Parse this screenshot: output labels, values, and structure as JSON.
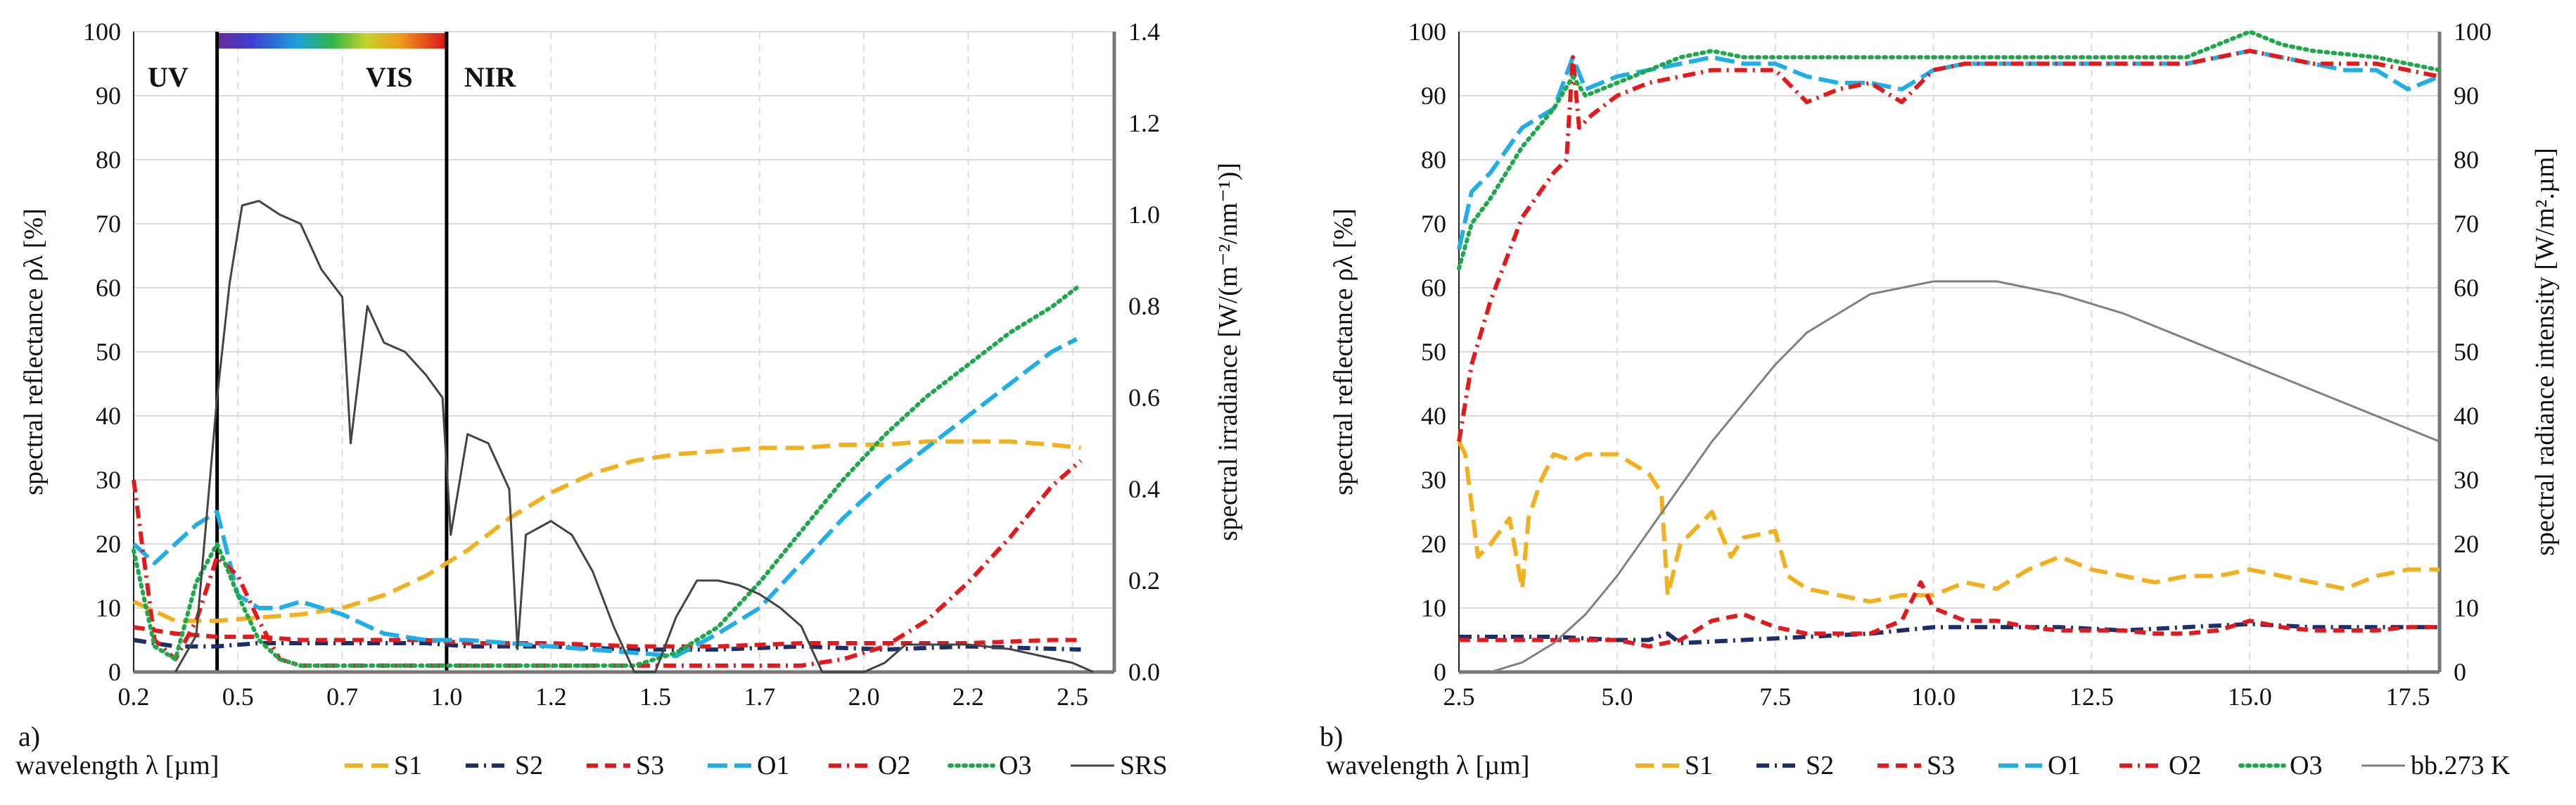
{
  "chart_data": [
    {
      "type": "line",
      "panel_label": "a)",
      "title": "",
      "xlabel": "wavelength λ  [µm]",
      "ylabel": "spectral reflectance ρλ  [%]",
      "y2label": "spectral irradiance [W/(m⁻²/nm⁻¹)]",
      "xlim": [
        0.2,
        2.55
      ],
      "ylim": [
        0,
        100
      ],
      "y2lim": [
        0,
        1.4
      ],
      "xticks": [
        "0.2",
        "0.5",
        "0.7",
        "1.0",
        "1.2",
        "1.5",
        "1.7",
        "2.0",
        "2.2",
        "2.5"
      ],
      "xtick_values": [
        0.2,
        0.45,
        0.7,
        0.95,
        1.2,
        1.45,
        1.7,
        1.95,
        2.2,
        2.45
      ],
      "yticks": [
        "0",
        "10",
        "20",
        "30",
        "40",
        "50",
        "60",
        "70",
        "80",
        "90",
        "100"
      ],
      "y2ticks": [
        "0.0",
        "0.2",
        "0.4",
        "0.6",
        "0.8",
        "1.0",
        "1.2",
        "1.4"
      ],
      "regions": [
        {
          "label": "UV",
          "x_start": 0.2,
          "x_end": 0.4
        },
        {
          "label": "VIS",
          "x_start": 0.4,
          "x_end": 0.95
        },
        {
          "label": "NIR",
          "x_start": 0.95,
          "x_end": 2.55
        }
      ],
      "series": [
        {
          "name": "S1",
          "color": "#F2B01E",
          "dash": "long",
          "axis": "left",
          "x": [
            0.2,
            0.3,
            0.4,
            0.5,
            0.6,
            0.7,
            0.8,
            0.9,
            1.0,
            1.1,
            1.2,
            1.3,
            1.4,
            1.5,
            1.6,
            1.7,
            1.8,
            1.9,
            2.0,
            2.1,
            2.2,
            2.3,
            2.4,
            2.47
          ],
          "y": [
            11,
            8,
            8,
            8.5,
            9,
            10,
            12,
            15,
            19,
            24,
            28,
            31,
            33,
            34,
            34.5,
            35,
            35,
            35.5,
            35.5,
            36,
            36,
            36,
            35.5,
            35
          ]
        },
        {
          "name": "S2",
          "color": "#1B2F6B",
          "dash": "dashdot",
          "axis": "left",
          "x": [
            0.2,
            0.3,
            0.4,
            0.5,
            0.6,
            0.7,
            0.8,
            0.9,
            1.0,
            1.2,
            1.4,
            1.6,
            1.8,
            2.0,
            2.2,
            2.47
          ],
          "y": [
            5,
            4,
            4,
            4.5,
            4.5,
            4.5,
            4.5,
            4.5,
            4,
            4,
            3.5,
            3.5,
            4,
            3.5,
            4,
            3.5
          ]
        },
        {
          "name": "S3",
          "color": "#E31A1C",
          "dash": "dash",
          "axis": "left",
          "x": [
            0.2,
            0.3,
            0.4,
            0.5,
            0.6,
            0.7,
            0.8,
            0.9,
            1.0,
            1.2,
            1.4,
            1.6,
            1.8,
            2.0,
            2.2,
            2.4,
            2.47
          ],
          "y": [
            7,
            6,
            5.5,
            5.5,
            5,
            5,
            5,
            5,
            4.5,
            4.5,
            4,
            4,
            4.5,
            4.5,
            4.5,
            5,
            5
          ]
        },
        {
          "name": "O1",
          "color": "#1FAEE5",
          "dash": "longdash",
          "axis": "left",
          "x": [
            0.2,
            0.25,
            0.3,
            0.35,
            0.4,
            0.45,
            0.5,
            0.55,
            0.6,
            0.7,
            0.8,
            0.9,
            1.0,
            1.1,
            1.2,
            1.3,
            1.4,
            1.5,
            1.6,
            1.7,
            1.8,
            1.9,
            2.0,
            2.1,
            2.2,
            2.3,
            2.4,
            2.46
          ],
          "y": [
            20,
            17,
            20,
            23,
            25,
            12,
            10,
            10,
            11,
            9,
            6,
            5,
            5,
            4.5,
            4,
            3.5,
            3,
            2.5,
            6,
            10,
            17,
            24,
            30,
            35,
            40,
            45,
            50,
            52
          ]
        },
        {
          "name": "O2",
          "color": "#E31A1C",
          "dash": "dashdot",
          "axis": "left",
          "x": [
            0.2,
            0.22,
            0.25,
            0.3,
            0.35,
            0.4,
            0.45,
            0.5,
            0.55,
            0.6,
            0.7,
            0.8,
            0.9,
            1.0,
            1.2,
            1.4,
            1.6,
            1.8,
            1.9,
            2.0,
            2.1,
            2.2,
            2.3,
            2.4,
            2.47
          ],
          "y": [
            30,
            20,
            5,
            2,
            8,
            18,
            15,
            8,
            2,
            1,
            1,
            1,
            1,
            1,
            1,
            1,
            1,
            1,
            2,
            4,
            8,
            14,
            21,
            29,
            33
          ]
        },
        {
          "name": "O3",
          "color": "#1EA84A",
          "dash": "dot",
          "axis": "left",
          "x": [
            0.2,
            0.25,
            0.3,
            0.35,
            0.4,
            0.45,
            0.5,
            0.55,
            0.6,
            0.7,
            0.8,
            0.9,
            1.0,
            1.1,
            1.2,
            1.3,
            1.4,
            1.5,
            1.6,
            1.7,
            1.8,
            1.9,
            2.0,
            2.1,
            2.2,
            2.3,
            2.4,
            2.46
          ],
          "y": [
            19,
            4,
            2,
            14,
            20,
            12,
            5,
            2,
            1,
            1,
            1,
            1,
            1,
            1,
            1,
            1,
            1,
            3,
            7,
            14,
            22,
            30,
            37,
            43,
            48,
            53,
            57,
            60
          ]
        },
        {
          "name": "SRS",
          "color": "#444444",
          "dash": "solid",
          "axis": "right",
          "x": [
            0.3,
            0.35,
            0.4,
            0.43,
            0.46,
            0.5,
            0.55,
            0.6,
            0.65,
            0.7,
            0.72,
            0.76,
            0.8,
            0.85,
            0.9,
            0.94,
            0.96,
            1.0,
            1.05,
            1.1,
            1.12,
            1.14,
            1.2,
            1.25,
            1.3,
            1.35,
            1.4,
            1.45,
            1.5,
            1.55,
            1.6,
            1.65,
            1.7,
            1.75,
            1.8,
            1.85,
            1.95,
            2.0,
            2.05,
            2.1,
            2.2,
            2.3,
            2.4,
            2.45,
            2.5
          ],
          "y": [
            0.0,
            0.08,
            0.6,
            0.85,
            1.02,
            1.03,
            1.0,
            0.98,
            0.88,
            0.82,
            0.5,
            0.8,
            0.72,
            0.7,
            0.65,
            0.6,
            0.3,
            0.52,
            0.5,
            0.4,
            0.05,
            0.3,
            0.33,
            0.3,
            0.22,
            0.1,
            0.0,
            0.0,
            0.12,
            0.2,
            0.2,
            0.19,
            0.17,
            0.14,
            0.1,
            0.0,
            0.0,
            0.02,
            0.06,
            0.06,
            0.06,
            0.05,
            0.03,
            0.02,
            0.0
          ]
        }
      ],
      "legend_position": "bottom"
    },
    {
      "type": "line",
      "panel_label": "b)",
      "title": "",
      "xlabel": "wavelength λ  [µm]",
      "ylabel": "spectral reflectance ρλ  [%]",
      "y2label": "spectral radiance intensity [W/m².µm]",
      "xlim": [
        2.5,
        18
      ],
      "ylim": [
        0,
        100
      ],
      "y2lim": [
        0,
        100
      ],
      "xticks": [
        "2.5",
        "5.0",
        "7.5",
        "10.0",
        "12.5",
        "15.0",
        "17.5"
      ],
      "xtick_values": [
        2.5,
        5.0,
        7.5,
        10.0,
        12.5,
        15.0,
        17.5
      ],
      "yticks": [
        "0",
        "10",
        "20",
        "30",
        "40",
        "50",
        "60",
        "70",
        "80",
        "90",
        "100"
      ],
      "y2ticks": [
        "0",
        "10",
        "20",
        "30",
        "40",
        "50",
        "60",
        "70",
        "80",
        "90",
        "100"
      ],
      "series": [
        {
          "name": "S1",
          "color": "#F2B01E",
          "dash": "long",
          "axis": "left",
          "x": [
            2.5,
            2.6,
            2.8,
            3.0,
            3.3,
            3.5,
            3.6,
            3.8,
            4.0,
            4.3,
            4.5,
            5.0,
            5.5,
            5.7,
            5.8,
            6.0,
            6.5,
            6.8,
            7.0,
            7.5,
            7.7,
            8.0,
            8.5,
            9.0,
            9.5,
            10.0,
            10.5,
            11.0,
            11.5,
            12.0,
            12.5,
            13.0,
            13.5,
            14.0,
            14.5,
            15.0,
            15.5,
            16.0,
            16.5,
            17.0,
            17.5,
            18.0
          ],
          "y": [
            36,
            34,
            18,
            20,
            24,
            13,
            24,
            30,
            34,
            33,
            34,
            34,
            31,
            28,
            12,
            20,
            25,
            18,
            21,
            22,
            15,
            13,
            12,
            11,
            12,
            12,
            14,
            13,
            16,
            18,
            16,
            15,
            14,
            15,
            15,
            16,
            15,
            14,
            13,
            15,
            16,
            16
          ]
        },
        {
          "name": "S2",
          "color": "#1B2F6B",
          "dash": "dashdot",
          "axis": "left",
          "x": [
            2.5,
            3.0,
            4.0,
            5.0,
            5.5,
            5.8,
            6.0,
            7.0,
            8.0,
            9.0,
            10.0,
            11.0,
            12.0,
            13.0,
            14.0,
            15.0,
            16.0,
            17.0,
            18.0
          ],
          "y": [
            5.5,
            5.5,
            5.5,
            5,
            5,
            6,
            4.5,
            5,
            5.5,
            6,
            7,
            7,
            7,
            6.5,
            7,
            7.5,
            7,
            7,
            7
          ]
        },
        {
          "name": "S3",
          "color": "#E31A1C",
          "dash": "dash",
          "axis": "left",
          "x": [
            2.5,
            3.0,
            4.0,
            5.0,
            5.5,
            6.0,
            6.5,
            7.0,
            7.5,
            8.0,
            8.5,
            9.0,
            9.5,
            9.8,
            10.0,
            10.5,
            11.0,
            11.5,
            12.0,
            12.5,
            13.0,
            13.5,
            14.0,
            14.5,
            15.0,
            15.5,
            16.0,
            16.5,
            17.0,
            17.5,
            18.0
          ],
          "y": [
            5,
            5,
            5,
            5,
            4,
            5,
            8,
            9,
            7,
            6,
            6,
            6,
            8,
            14,
            10,
            8,
            8,
            7,
            6.5,
            6.5,
            6.5,
            6,
            6,
            6.5,
            8,
            7,
            6.5,
            6.5,
            6.5,
            7,
            7
          ]
        },
        {
          "name": "O1",
          "color": "#1FAEE5",
          "dash": "longdash",
          "axis": "left",
          "x": [
            2.5,
            2.7,
            3.0,
            3.5,
            4.0,
            4.3,
            4.5,
            5.0,
            5.5,
            6.0,
            6.5,
            7.0,
            7.5,
            8.0,
            8.5,
            9.0,
            9.5,
            10.0,
            10.5,
            11.0,
            11.5,
            12.0,
            12.5,
            13.0,
            13.5,
            14.0,
            14.5,
            15.0,
            15.5,
            16.0,
            16.5,
            17.0,
            17.5,
            18.0
          ],
          "y": [
            66,
            75,
            78,
            85,
            88,
            96,
            91,
            93,
            94,
            95,
            96,
            95,
            95,
            93,
            92,
            92,
            91,
            94,
            95,
            95,
            95,
            95,
            95,
            95,
            95,
            95,
            96,
            97,
            96,
            95,
            94,
            94,
            91,
            93
          ]
        },
        {
          "name": "O2",
          "color": "#E31A1C",
          "dash": "dashdot",
          "axis": "left",
          "x": [
            2.5,
            2.7,
            3.0,
            3.5,
            4.0,
            4.2,
            4.3,
            4.4,
            4.6,
            5.0,
            5.5,
            6.0,
            6.5,
            7.0,
            7.5,
            8.0,
            8.5,
            9.0,
            9.5,
            10.0,
            10.5,
            11.0,
            11.5,
            12.0,
            12.5,
            13.0,
            13.5,
            14.0,
            14.5,
            15.0,
            15.5,
            16.0,
            16.5,
            17.0,
            17.5,
            18.0
          ],
          "y": [
            36,
            48,
            58,
            71,
            78,
            80,
            96,
            85,
            87,
            90,
            92,
            93,
            94,
            94,
            94,
            89,
            91,
            92,
            89,
            94,
            95,
            95,
            95,
            95,
            95,
            95,
            95,
            95,
            96,
            97,
            96,
            95,
            95,
            95,
            94,
            93
          ]
        },
        {
          "name": "O3",
          "color": "#1EA84A",
          "dash": "dot",
          "axis": "left",
          "x": [
            2.5,
            2.7,
            3.0,
            3.5,
            4.0,
            4.3,
            4.5,
            5.0,
            5.5,
            6.0,
            6.5,
            7.0,
            7.5,
            8.0,
            9.0,
            10.0,
            11.0,
            12.0,
            13.0,
            14.0,
            14.5,
            15.0,
            15.5,
            16.0,
            17.0,
            17.5,
            18.0
          ],
          "y": [
            63,
            70,
            74,
            82,
            88,
            93,
            90,
            92,
            94,
            96,
            97,
            96,
            96,
            96,
            96,
            96,
            96,
            96,
            96,
            96,
            98,
            100,
            98,
            97,
            96,
            95,
            94
          ]
        },
        {
          "name": "bb.273 K",
          "color": "#808080",
          "dash": "solid",
          "axis": "right",
          "x": [
            3.0,
            3.5,
            4.0,
            4.5,
            5.0,
            5.5,
            6.0,
            6.5,
            7.0,
            7.5,
            8.0,
            8.5,
            9.0,
            9.5,
            10.0,
            11.0,
            12.0,
            13.0,
            14.0,
            15.0,
            16.0,
            17.0,
            18.0
          ],
          "y": [
            0,
            1.5,
            4.5,
            9,
            15,
            22,
            29,
            36,
            42,
            48,
            53,
            56,
            59,
            60,
            61,
            61,
            59,
            56,
            52,
            48,
            44,
            40,
            36
          ]
        }
      ],
      "legend_position": "bottom"
    }
  ]
}
